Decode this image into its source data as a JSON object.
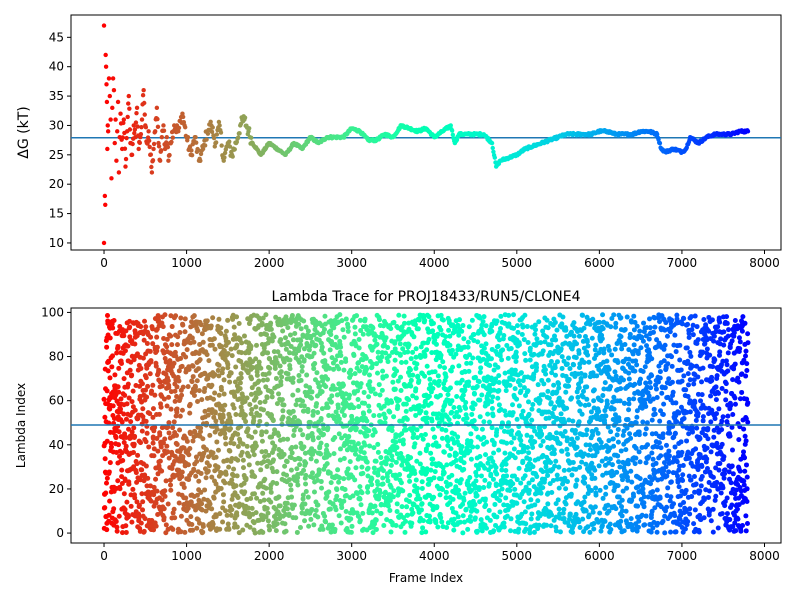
{
  "chart_data": [
    {
      "type": "scatter",
      "title": "",
      "xlabel": "",
      "ylabel": "ΔG (kT)",
      "xlim": [
        -400,
        8200
      ],
      "ylim": [
        8.8,
        48.8
      ],
      "xticks": [
        0,
        1000,
        2000,
        3000,
        4000,
        5000,
        6000,
        7000,
        8000
      ],
      "yticks": [
        10,
        15,
        20,
        25,
        30,
        35,
        40,
        45
      ],
      "hline": 27.9,
      "hline_color": "#1f77b4",
      "colormap": "rainbow",
      "color_by": "x",
      "grid": false,
      "legend": "none",
      "trace": [
        [
          0,
          47
        ],
        [
          0,
          10
        ],
        [
          10,
          18
        ],
        [
          15,
          16.5
        ],
        [
          20,
          42
        ],
        [
          25,
          40
        ],
        [
          30,
          37
        ],
        [
          35,
          34
        ],
        [
          40,
          26
        ],
        [
          45,
          30
        ],
        [
          50,
          29
        ],
        [
          60,
          38
        ],
        [
          70,
          35
        ],
        [
          80,
          31
        ],
        [
          90,
          21
        ],
        [
          100,
          33
        ],
        [
          110,
          38
        ],
        [
          120,
          36
        ],
        [
          130,
          27
        ],
        [
          140,
          31
        ],
        [
          150,
          24
        ],
        [
          160,
          29
        ],
        [
          170,
          34
        ],
        [
          180,
          22
        ],
        [
          190,
          28
        ],
        [
          200,
          32
        ],
        [
          220,
          26
        ],
        [
          240,
          31
        ],
        [
          260,
          23
        ],
        [
          280,
          29
        ],
        [
          300,
          35
        ],
        [
          320,
          27
        ],
        [
          340,
          25
        ],
        [
          360,
          30
        ],
        [
          380,
          28
        ],
        [
          400,
          33
        ],
        [
          420,
          26
        ],
        [
          440,
          28
        ],
        [
          460,
          31
        ],
        [
          480,
          36
        ],
        [
          500,
          30
        ],
        [
          520,
          27
        ],
        [
          540,
          29
        ],
        [
          560,
          25
        ],
        [
          580,
          22
        ],
        [
          600,
          26
        ],
        [
          620,
          29
        ],
        [
          640,
          33
        ],
        [
          660,
          27
        ],
        [
          680,
          24
        ],
        [
          700,
          28
        ],
        [
          720,
          30
        ],
        [
          740,
          26
        ],
        [
          760,
          28
        ],
        [
          780,
          24
        ],
        [
          800,
          27
        ],
        [
          850,
          30
        ],
        [
          900,
          29
        ],
        [
          950,
          32
        ],
        [
          1000,
          28
        ],
        [
          1050,
          25
        ],
        [
          1100,
          28
        ],
        [
          1150,
          24
        ],
        [
          1200,
          26
        ],
        [
          1250,
          29
        ],
        [
          1300,
          30
        ],
        [
          1350,
          27
        ],
        [
          1400,
          30
        ],
        [
          1450,
          24
        ],
        [
          1500,
          27
        ],
        [
          1550,
          25
        ],
        [
          1600,
          27
        ],
        [
          1650,
          30
        ],
        [
          1700,
          31
        ],
        [
          1750,
          29
        ],
        [
          1800,
          27
        ],
        [
          1850,
          26
        ],
        [
          1900,
          25
        ],
        [
          2000,
          27
        ],
        [
          2100,
          26
        ],
        [
          2200,
          25
        ],
        [
          2300,
          27
        ],
        [
          2400,
          26
        ],
        [
          2500,
          28
        ],
        [
          2600,
          27
        ],
        [
          2700,
          28
        ],
        [
          2800,
          28
        ],
        [
          2900,
          28
        ],
        [
          3000,
          29.5
        ],
        [
          3100,
          29
        ],
        [
          3200,
          27.5
        ],
        [
          3300,
          27.5
        ],
        [
          3400,
          28.5
        ],
        [
          3500,
          28
        ],
        [
          3600,
          30
        ],
        [
          3700,
          29.5
        ],
        [
          3800,
          29
        ],
        [
          3900,
          29.5
        ],
        [
          4000,
          28
        ],
        [
          4100,
          29
        ],
        [
          4200,
          30
        ],
        [
          4250,
          27
        ],
        [
          4300,
          28.5
        ],
        [
          4400,
          28.5
        ],
        [
          4500,
          28.5
        ],
        [
          4600,
          28.5
        ],
        [
          4700,
          27
        ],
        [
          4750,
          23
        ],
        [
          4800,
          24
        ],
        [
          4900,
          24.5
        ],
        [
          5000,
          25
        ],
        [
          5100,
          26
        ],
        [
          5200,
          26.5
        ],
        [
          5300,
          27
        ],
        [
          5400,
          27.5
        ],
        [
          5500,
          28
        ],
        [
          5600,
          28.5
        ],
        [
          5700,
          28.5
        ],
        [
          5800,
          28.5
        ],
        [
          5900,
          28.5
        ],
        [
          6000,
          29
        ],
        [
          6100,
          29
        ],
        [
          6200,
          28.5
        ],
        [
          6300,
          28.5
        ],
        [
          6400,
          28.5
        ],
        [
          6500,
          29
        ],
        [
          6600,
          29
        ],
        [
          6700,
          28.5
        ],
        [
          6750,
          26
        ],
        [
          6800,
          25.5
        ],
        [
          6900,
          26
        ],
        [
          7000,
          25.5
        ],
        [
          7050,
          26
        ],
        [
          7100,
          28
        ],
        [
          7200,
          27
        ],
        [
          7300,
          28
        ],
        [
          7400,
          28.5
        ],
        [
          7500,
          28.5
        ],
        [
          7600,
          28.5
        ],
        [
          7700,
          29
        ],
        [
          7800,
          29
        ]
      ]
    },
    {
      "type": "scatter",
      "title": "Lambda Trace for PROJ18433/RUN5/CLONE4",
      "xlabel": "Frame Index",
      "ylabel": "Lambda Index",
      "xlim": [
        -400,
        8200
      ],
      "ylim": [
        -4.5,
        102
      ],
      "xticks": [
        0,
        1000,
        2000,
        3000,
        4000,
        5000,
        6000,
        7000,
        8000
      ],
      "yticks": [
        0,
        20,
        40,
        60,
        80,
        100
      ],
      "hline": 49,
      "hline_color": "#1f77b4",
      "colormap": "rainbow",
      "color_by": "x",
      "grid": false,
      "legend": "none",
      "point_count": 5200,
      "x_range": [
        0,
        7800
      ],
      "y_range": [
        0,
        99
      ]
    }
  ]
}
